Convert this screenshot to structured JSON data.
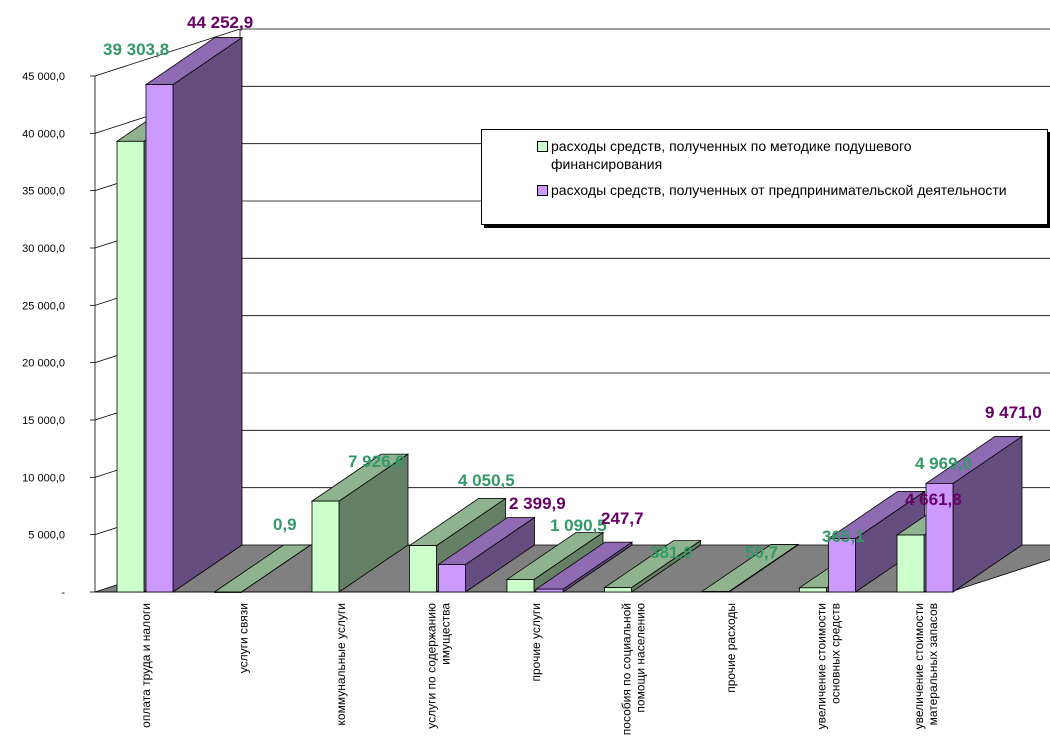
{
  "chart_data": {
    "type": "bar",
    "title": "",
    "xlabel": "",
    "ylabel": "",
    "ylim": [
      0,
      45000
    ],
    "yticks": [
      "-",
      "5 000,0",
      "10 000,0",
      "15 000,0",
      "20 000,0",
      "25 000,0",
      "30 000,0",
      "35 000,0",
      "40 000,0",
      "45 000,0"
    ],
    "grid": true,
    "legend_position": "top-right",
    "categories": [
      [
        "оплата труда и налоги"
      ],
      [
        "услуги связи"
      ],
      [
        "коммунальные услуги"
      ],
      [
        "услуги по содержанию",
        "имущества"
      ],
      [
        "прочие услуги"
      ],
      [
        "пособия по социальной",
        "помощи населению"
      ],
      [
        "прочие расходы"
      ],
      [
        "увеличение стоимости",
        "основных средств"
      ],
      [
        "увеличение стоимости",
        "матеральных запасов"
      ]
    ],
    "series": [
      {
        "name": "расходы средств, полученных по методике подушевого финансирования",
        "color": "#ccffcc",
        "label_color": "#339966",
        "values": [
          39303.8,
          0.9,
          7926.6,
          4050.5,
          1090.5,
          381.0,
          50.7,
          365.1,
          4969.0
        ],
        "labels": [
          "39 303,8",
          "0,9",
          "7 926,6",
          "4 050,5",
          "1 090,5",
          "381,0",
          "50,7",
          "365,1",
          "4 969,0"
        ]
      },
      {
        "name": "расходы средств, полученных от предпринимательской деятельности",
        "color": "#cc99ff",
        "label_color": "#660066",
        "values": [
          44252.9,
          null,
          null,
          2399.9,
          247.7,
          null,
          null,
          4661.8,
          9471.0
        ],
        "labels": [
          "44 252,9",
          null,
          null,
          "2 399,9",
          "247,7",
          null,
          null,
          "4 661,8",
          "9 471,0"
        ]
      }
    ],
    "colors": {
      "floor": "#808080",
      "grid": "#000000"
    }
  }
}
